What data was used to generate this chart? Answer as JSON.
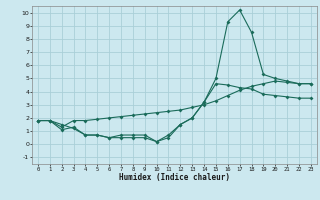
{
  "xlabel": "Humidex (Indice chaleur)",
  "ylabel": "",
  "background_color": "#cce8ef",
  "grid_color": "#aacfd8",
  "line_color": "#1a6b5a",
  "xlim": [
    -0.5,
    23.5
  ],
  "ylim": [
    -1.5,
    10.5
  ],
  "xticks": [
    0,
    1,
    2,
    3,
    4,
    5,
    6,
    7,
    8,
    9,
    10,
    11,
    12,
    13,
    14,
    15,
    16,
    17,
    18,
    19,
    20,
    21,
    22,
    23
  ],
  "yticks": [
    -1,
    0,
    1,
    2,
    3,
    4,
    5,
    6,
    7,
    8,
    9,
    10
  ],
  "line1_x": [
    0,
    1,
    2,
    3,
    4,
    5,
    6,
    7,
    8,
    9,
    10,
    11,
    12,
    13,
    14,
    15,
    16,
    17,
    18,
    19,
    20,
    21,
    22,
    23
  ],
  "line1_y": [
    1.8,
    1.8,
    1.5,
    1.2,
    0.7,
    0.7,
    0.5,
    0.7,
    0.7,
    0.7,
    0.2,
    0.7,
    1.5,
    2.0,
    3.2,
    5.0,
    9.3,
    10.2,
    8.5,
    5.3,
    5.0,
    4.8,
    4.6,
    4.6
  ],
  "line2_x": [
    0,
    1,
    2,
    3,
    4,
    5,
    6,
    7,
    8,
    9,
    10,
    11,
    12,
    13,
    14,
    15,
    16,
    17,
    18,
    19,
    20,
    21,
    22,
    23
  ],
  "line2_y": [
    1.8,
    1.8,
    1.3,
    1.8,
    1.8,
    1.9,
    2.0,
    2.1,
    2.2,
    2.3,
    2.4,
    2.5,
    2.6,
    2.8,
    3.0,
    3.3,
    3.7,
    4.1,
    4.4,
    4.6,
    4.8,
    4.7,
    4.6,
    4.6
  ],
  "line3_x": [
    0,
    1,
    2,
    3,
    4,
    5,
    6,
    7,
    8,
    9,
    10,
    11,
    12,
    13,
    14,
    15,
    16,
    17,
    18,
    19,
    20,
    21,
    22,
    23
  ],
  "line3_y": [
    1.8,
    1.8,
    1.1,
    1.3,
    0.7,
    0.7,
    0.5,
    0.5,
    0.5,
    0.5,
    0.2,
    0.5,
    1.5,
    2.0,
    3.2,
    4.6,
    4.5,
    4.3,
    4.2,
    3.8,
    3.7,
    3.6,
    3.5,
    3.5
  ]
}
